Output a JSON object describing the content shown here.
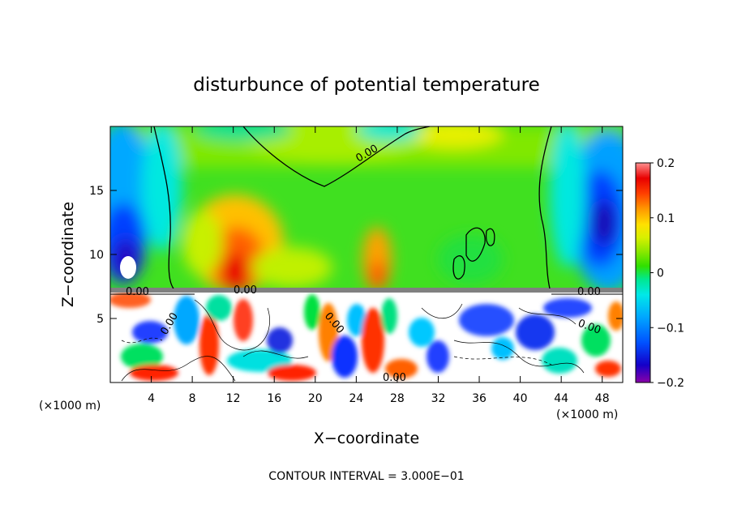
{
  "chart_data": {
    "type": "heatmap",
    "title": "disturbunce of potential temperature",
    "xlabel": "X−coordinate",
    "ylabel": "Z−coordinate",
    "x_unit_left": "(×1000 m)",
    "x_unit_right": "(×1000 m)",
    "footer": "CONTOUR INTERVAL = 3.000E−01",
    "xlim": [
      0,
      50
    ],
    "ylim": [
      0,
      20
    ],
    "x_ticks": [
      4,
      8,
      12,
      16,
      20,
      24,
      28,
      32,
      36,
      40,
      44,
      48
    ],
    "x_tick_labels": [
      "4",
      "8",
      "12",
      "16",
      "20",
      "24",
      "28",
      "32",
      "36",
      "40",
      "44",
      "48"
    ],
    "y_ticks": [
      5,
      10,
      15
    ],
    "y_tick_labels": [
      "5",
      "10",
      "15"
    ],
    "colorbar": {
      "range": [
        -0.2,
        0.2
      ],
      "ticks": [
        0.2,
        0.1,
        0,
        -0.1,
        -0.2
      ],
      "tick_labels": [
        "0.2",
        "0.1",
        "0",
        "−0.1",
        "−0.2"
      ],
      "colors": [
        "#8a00a8",
        "#1400c8",
        "#0050ff",
        "#00a8ff",
        "#00e8e8",
        "#00e890",
        "#30e000",
        "#90e800",
        "#d8f000",
        "#ffe000",
        "#ff9800",
        "#ff4000",
        "#e80000",
        "#ff9090"
      ]
    },
    "contour_labels": [
      "0.00",
      "0.00",
      "0.00",
      "0.00",
      "0.00",
      "0.00",
      "0.00",
      "0.00"
    ],
    "interface_height": 7.2,
    "upper_field_samples": [
      {
        "x": 2,
        "z": 12,
        "value": -0.18
      },
      {
        "x": 3,
        "z": 16,
        "value": -0.08
      },
      {
        "x": 8,
        "z": 12,
        "value": 0.03
      },
      {
        "x": 13,
        "z": 10,
        "value": 0.13
      },
      {
        "x": 20,
        "z": 14,
        "value": 0.02
      },
      {
        "x": 26,
        "z": 9,
        "value": 0.09
      },
      {
        "x": 35,
        "z": 12,
        "value": 0.02
      },
      {
        "x": 42,
        "z": 15,
        "value": 0.0
      },
      {
        "x": 46,
        "z": 14,
        "value": -0.13
      },
      {
        "x": 48,
        "z": 17,
        "value": -0.1
      }
    ]
  }
}
